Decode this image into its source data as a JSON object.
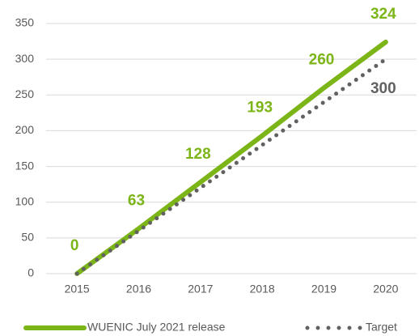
{
  "chart_data": {
    "type": "line",
    "categories": [
      "2015",
      "2016",
      "2017",
      "2018",
      "2019",
      "2020"
    ],
    "series": [
      {
        "name": "WUENIC July 2021 release",
        "color": "#7cb518",
        "style": "solid",
        "values": [
          0,
          63,
          128,
          193,
          260,
          324
        ],
        "labels_shown": [
          true,
          true,
          true,
          true,
          true,
          true
        ]
      },
      {
        "name": "Target",
        "color": "#616161",
        "style": "dotted",
        "values": [
          0,
          60,
          120,
          180,
          240,
          300
        ],
        "labels_shown": [
          false,
          false,
          false,
          false,
          false,
          true
        ]
      }
    ],
    "ylim": [
      0,
      350
    ],
    "yticks": [
      0,
      50,
      100,
      150,
      200,
      250,
      300,
      350
    ],
    "grid": true,
    "legend": "bottom"
  }
}
